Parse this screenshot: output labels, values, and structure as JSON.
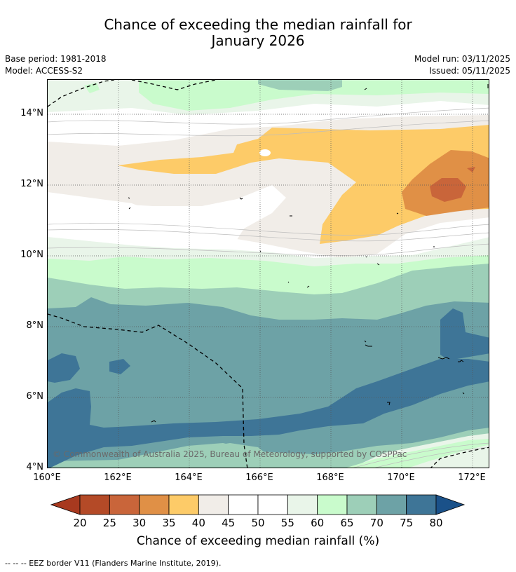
{
  "header": {
    "title_line1": "Chance of exceeding the median rainfall for",
    "title_line2": "January 2026"
  },
  "meta": {
    "base_period": "Base period: 1981-2018",
    "model": "Model: ACCESS-S2",
    "model_run": "Model run: 03/11/2025",
    "issued": "Issued: 05/11/2025"
  },
  "map": {
    "lat_labels": [
      "14°N",
      "12°N",
      "10°N",
      "8°N",
      "6°N",
      "4°N"
    ],
    "lon_labels": [
      "160°E",
      "162°E",
      "164°E",
      "166°E",
      "168°E",
      "170°E",
      "172°E"
    ],
    "copyright": "© Commonwealth of Australia 2025, Bureau of Meteorology, supported by COSPPac"
  },
  "colorbar": {
    "ticks": [
      "20",
      "25",
      "30",
      "35",
      "40",
      "45",
      "50",
      "55",
      "60",
      "65",
      "70",
      "75",
      "80"
    ],
    "colors": [
      "#a8391f",
      "#b44a27",
      "#c9653a",
      "#e09046",
      "#fdcb68",
      "#f1ede8",
      "#ffffff",
      "#ffffff",
      "#e9f5e9",
      "#c9fbcc",
      "#9dcfb8",
      "#6da2a6",
      "#3e7597",
      "#1a5189"
    ],
    "label": "Chance of exceeding median rainfall (%)"
  },
  "footer": {
    "legend": "--  --  -- EEZ border V11 (Flanders Marine Institute, 2019)."
  }
}
